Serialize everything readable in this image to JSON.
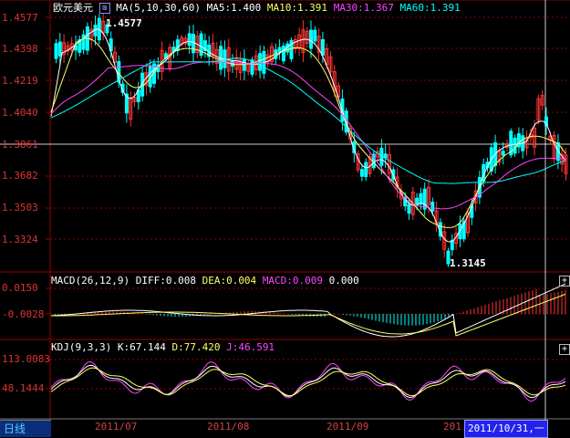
{
  "main_legend": {
    "symbol": "欧元美元",
    "ma_params": "MA(5,10,30,60)",
    "ma5": "MA5:1.400",
    "ma10": "MA10:1.391",
    "ma30": "MA30:1.367",
    "ma60": "MA60:1.391"
  },
  "main_price_labels": [
    "1.4577",
    "1.4398",
    "1.4219",
    "1.4040",
    "1.3861",
    "1.3682",
    "1.3503",
    "1.3324"
  ],
  "annotations": {
    "high": "1.4577",
    "low": "1.3145"
  },
  "macd_legend": {
    "params": "MACD(26,12,9)",
    "diff": "DIFF:0.008",
    "dea": "DEA:0.004",
    "macd": "MACD:0.009",
    "extra": "0.000"
  },
  "macd_labels": [
    "0.0150",
    "-0.0028"
  ],
  "kdj_legend": {
    "params": "KDJ(9,3,3)",
    "k": "K:67.144",
    "d": "D:77.420",
    "j": "J:46.591"
  },
  "kdj_labels": [
    "113.0083",
    "48.1444"
  ],
  "period_tab": "日线",
  "dates": [
    "2011/07",
    "2011/08",
    "2011/09",
    "201"
  ],
  "cursor_date": "2011/10/31,一",
  "plus_symbol": "+",
  "colors": {
    "up": "#ff3333",
    "down": "#00ffff",
    "ma5": "#ffffff",
    "ma10": "#ffff66",
    "ma30": "#ff44ff",
    "ma60": "#00ffff",
    "grid": "#990000",
    "axis_label": "#dd3333"
  }
}
